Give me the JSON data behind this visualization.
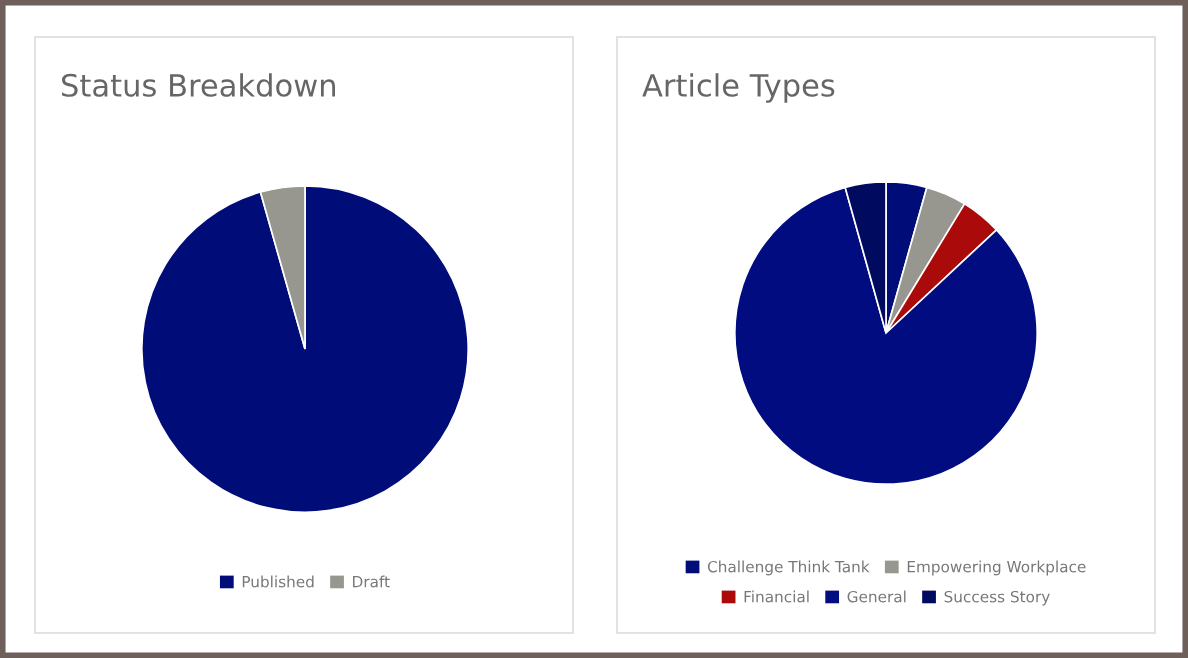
{
  "chart_data": [
    {
      "type": "pie",
      "title": "Status Breakdown",
      "categories": [
        "Published",
        "Draft"
      ],
      "values": [
        95.6,
        4.4
      ],
      "colors": [
        "#000c78",
        "#97978f"
      ],
      "legend": "bottom"
    },
    {
      "type": "pie",
      "title": "Article Types",
      "categories": [
        "Challenge Think Tank",
        "Empowering Workplace",
        "Financial",
        "General",
        "Success Story"
      ],
      "values": [
        4.35,
        4.35,
        4.35,
        82.6,
        4.35
      ],
      "colors": [
        "#000c78",
        "#97978f",
        "#ab0a0a",
        "#000c80",
        "#000a5e"
      ],
      "legend": "bottom"
    }
  ]
}
